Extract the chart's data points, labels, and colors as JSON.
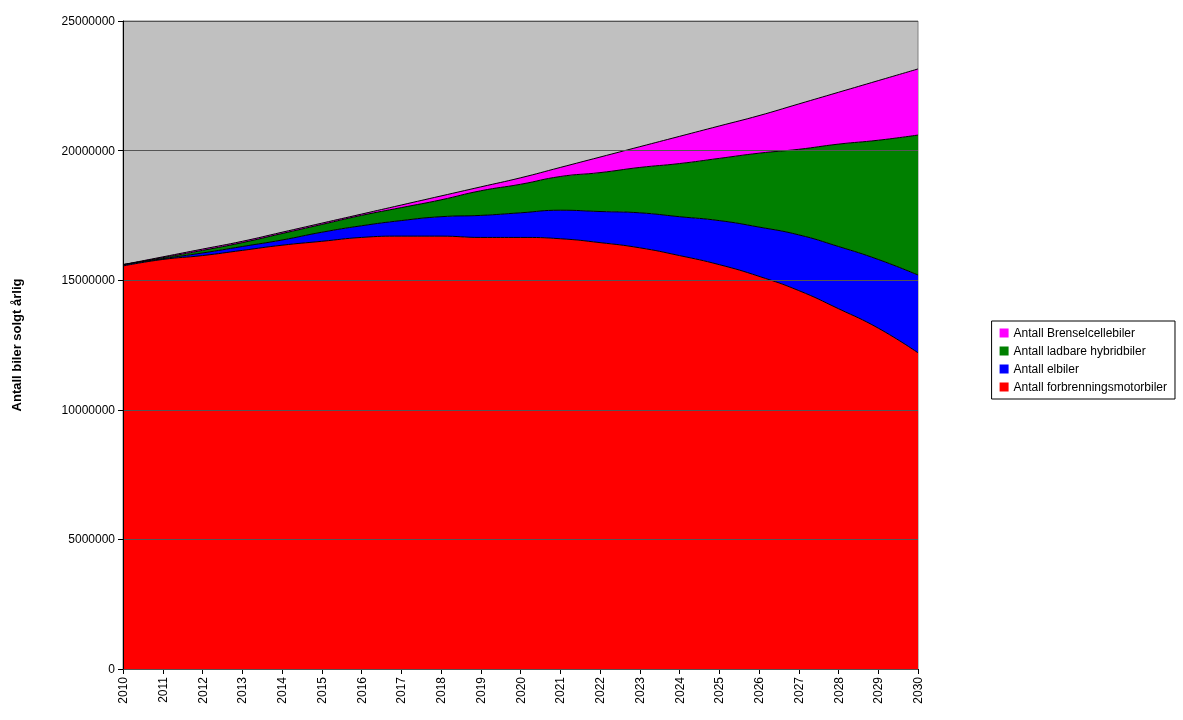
{
  "chart_data": {
    "type": "area",
    "stacked": true,
    "ylabel": "Antall biler solgt årlig",
    "categories": [
      "2010",
      "2011",
      "2012",
      "2013",
      "2014",
      "2015",
      "2016",
      "2017",
      "2018",
      "2019",
      "2020",
      "2021",
      "2022",
      "2023",
      "2024",
      "2025",
      "2026",
      "2027",
      "2028",
      "2029",
      "2030"
    ],
    "series": [
      {
        "name": "Antall forbrenningsmotorbiler",
        "color": "#ff0000",
        "values": [
          15550000,
          15800000,
          15950000,
          16150000,
          16350000,
          16500000,
          16650000,
          16700000,
          16700000,
          16650000,
          16650000,
          16600000,
          16450000,
          16250000,
          15950000,
          15600000,
          15150000,
          14600000,
          13900000,
          13150000,
          12200000
        ]
      },
      {
        "name": "Antall elbiler",
        "color": "#0000ff",
        "values": [
          50000,
          30000,
          100000,
          150000,
          200000,
          350000,
          450000,
          600000,
          750000,
          850000,
          950000,
          1100000,
          1200000,
          1350000,
          1500000,
          1700000,
          1900000,
          2150000,
          2400000,
          2650000,
          3000000
        ]
      },
      {
        "name": "Antall ladbare hybridbiler",
        "color": "#008000",
        "values": [
          0,
          40000,
          100000,
          150000,
          250000,
          300000,
          400000,
          500000,
          650000,
          950000,
          1100000,
          1300000,
          1500000,
          1750000,
          2050000,
          2400000,
          2850000,
          3300000,
          3950000,
          4600000,
          5400000
        ]
      },
      {
        "name": "Antall Brenselcellebiler",
        "color": "#ff00ff",
        "values": [
          0,
          30000,
          50000,
          50000,
          50000,
          50000,
          50000,
          100000,
          150000,
          150000,
          250000,
          350000,
          600000,
          800000,
          1050000,
          1250000,
          1450000,
          1750000,
          2000000,
          2300000,
          2550000
        ]
      }
    ],
    "ylim": [
      0,
      25000000
    ],
    "yticks": [
      0,
      5000000,
      10000000,
      15000000,
      20000000,
      25000000
    ],
    "grid": "y",
    "legend": "right"
  }
}
